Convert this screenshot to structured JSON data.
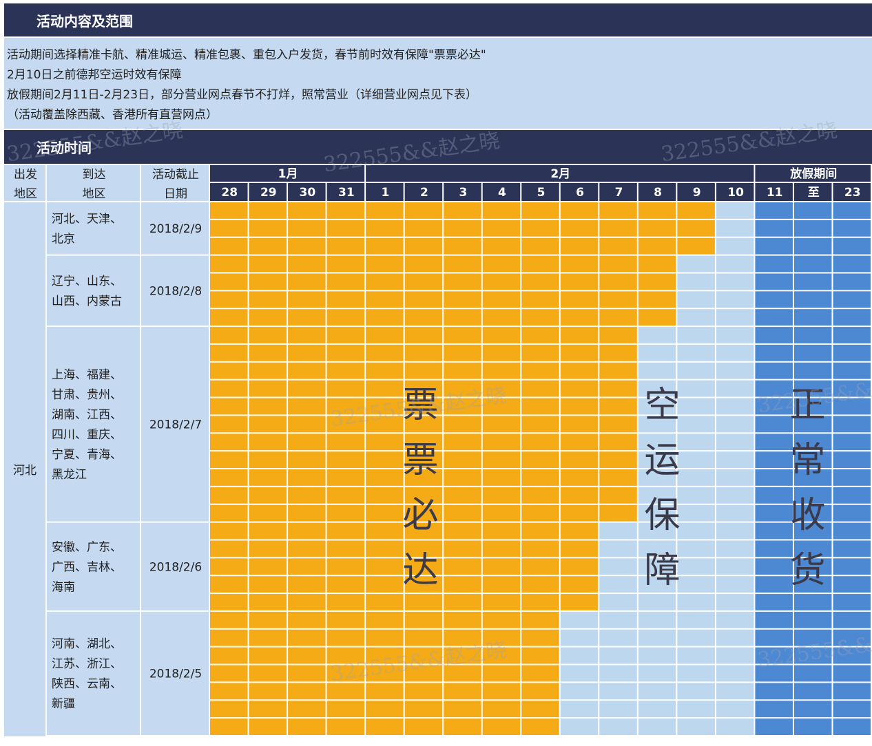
{
  "header": {
    "title": "活动内容及范围",
    "section_title": "活动时间"
  },
  "notes": [
    "活动期间选择精准卡航、精准城运、精准包裹、重包入户发货，春节前时效有保障\"票票必达\"",
    "2月10日之前德邦空运时效有保障",
    "放假期间2月11日-2月23日，部分营业网点春节不打烊，照常营业（详细营业网点见下表）",
    "（活动覆盖除西藏、香港所有直营网点）"
  ],
  "table": {
    "columns": [
      [
        "出发",
        "地区"
      ],
      [
        "到达",
        "地区"
      ],
      [
        "活动截止",
        "日期"
      ]
    ],
    "months": [
      {
        "label": "1月",
        "days": [
          "28",
          "29",
          "30",
          "31"
        ]
      },
      {
        "label": "2月",
        "days": [
          "1",
          "2",
          "3",
          "4",
          "5",
          "6",
          "7",
          "8",
          "9",
          "10"
        ]
      },
      {
        "label": "放假期间",
        "days": [
          "11",
          "至",
          "23"
        ]
      }
    ],
    "origin": "河北",
    "groups": [
      {
        "regions": [
          "河北、天津、",
          "北京"
        ],
        "deadline": "2018/2/9"
      },
      {
        "regions": [
          "辽宁、山东、",
          "山西、内蒙古"
        ],
        "deadline": "2018/2/8"
      },
      {
        "regions": [
          "上海、福建、",
          "甘肃、贵州、",
          "湖南、江西、",
          "四川、重庆、",
          "宁夏、青海、",
          "黑龙江"
        ],
        "deadline": "2018/2/7"
      },
      {
        "regions": [
          "安徽、广东、",
          "广西、吉林、",
          "海南"
        ],
        "deadline": "2018/2/6"
      },
      {
        "regions": [
          "河南、湖北、",
          "江苏、浙江、",
          "陕西、云南、",
          "新疆"
        ],
        "deadline": "2018/2/5"
      }
    ]
  },
  "overlays": [
    "票票必达",
    "空运保障",
    "正常收货"
  ],
  "watermark": "322555&&赵之晓",
  "colors": {
    "guaranteed": "#f5ab16",
    "air": "#bdd7ee",
    "holiday": "#4d88d2",
    "header": "#2b3457",
    "info": "#c5d9f0"
  }
}
